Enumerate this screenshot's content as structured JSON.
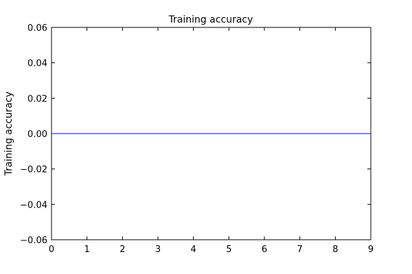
{
  "chart_data": {
    "type": "line",
    "title": "Training accuracy",
    "xlabel": "",
    "ylabel": "Training accuracy",
    "xlim": [
      0,
      9
    ],
    "ylim": [
      -0.06,
      0.06
    ],
    "x_ticks": [
      0,
      1,
      2,
      3,
      4,
      5,
      6,
      7,
      8,
      9
    ],
    "x_tick_labels": [
      "0",
      "1",
      "2",
      "3",
      "4",
      "5",
      "6",
      "7",
      "8",
      "9"
    ],
    "y_ticks": [
      -0.06,
      -0.04,
      -0.02,
      0.0,
      0.02,
      0.04,
      0.06
    ],
    "y_tick_labels": [
      "−0.06",
      "−0.04",
      "−0.02",
      "0.00",
      "0.02",
      "0.04",
      "0.06"
    ],
    "grid": false,
    "series": [
      {
        "color": "#0000ff",
        "x": [
          0,
          1,
          2,
          3,
          4,
          5,
          6,
          7,
          8,
          9
        ],
        "y": [
          0,
          0,
          0,
          0,
          0,
          0,
          0,
          0,
          0,
          0
        ]
      }
    ]
  }
}
